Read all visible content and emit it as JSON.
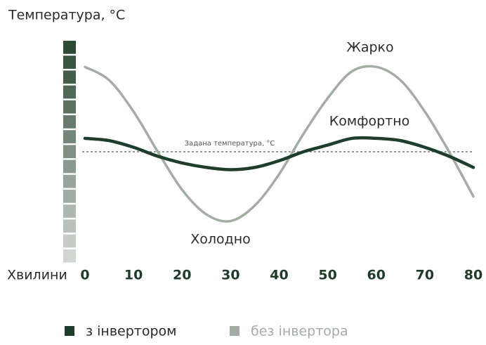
{
  "chart_data": {
    "type": "line",
    "y_axis_title": "Температура, °C",
    "x_axis_label": "Хвилини",
    "x": [
      0,
      5,
      10,
      15,
      20,
      25,
      30,
      35,
      40,
      45,
      50,
      55,
      60,
      65,
      70,
      75,
      80
    ],
    "xlim": [
      0,
      80
    ],
    "xticks": [
      0,
      10,
      20,
      30,
      40,
      50,
      60,
      70,
      80
    ],
    "ylim": [
      0,
      100
    ],
    "series": [
      {
        "name": "з інвертором",
        "color": "#1f3d2b",
        "values": [
          56,
          55,
          52,
          48,
          45,
          43,
          42,
          43,
          46,
          50,
          53,
          56,
          56,
          55,
          52,
          48,
          43
        ]
      },
      {
        "name": "без інвертора",
        "color": "#a3ada3",
        "values": [
          88,
          82,
          68,
          50,
          33,
          22,
          19,
          26,
          40,
          58,
          74,
          86,
          88,
          82,
          68,
          50,
          30
        ]
      }
    ],
    "reference_line": {
      "value": 50,
      "label": "Задана температура, °C",
      "color": "#6f7a72"
    },
    "annotations": [
      "Жарко",
      "Комфортно",
      "Холодно"
    ]
  }
}
